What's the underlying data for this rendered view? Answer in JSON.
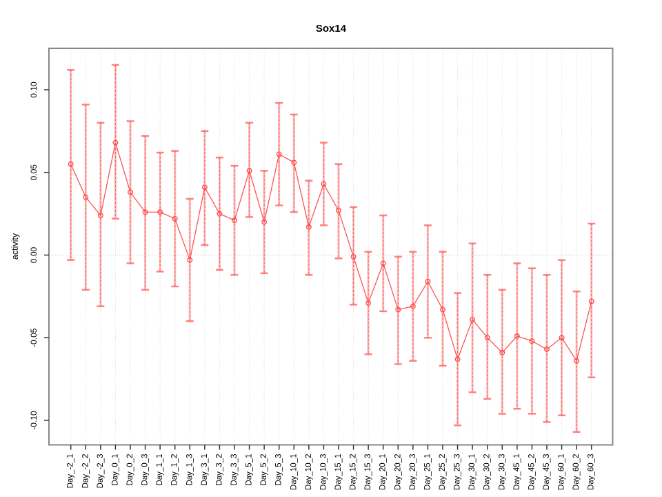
{
  "chart_data": {
    "type": "line",
    "title": "Sox14",
    "xlabel": "",
    "ylabel": "activity",
    "ylim": [
      -0.115,
      0.125
    ],
    "y_ticks": [
      0.1,
      0.05,
      0.0,
      -0.05,
      -0.1
    ],
    "y_tick_labels": [
      "0.10",
      "0.05",
      "0.00",
      "-0.05",
      "-0.10"
    ],
    "grid": "vertical dotted gridline per category, dotted horizontal line at y=0",
    "legend": "none",
    "marker": "open-circle",
    "categories": [
      "Day_-2_1",
      "Day_-2_2",
      "Day_-2_3",
      "Day_0_1",
      "Day_0_2",
      "Day_0_3",
      "Day_1_1",
      "Day_1_2",
      "Day_1_3",
      "Day_3_1",
      "Day_3_2",
      "Day_3_3",
      "Day_5_1",
      "Day_5_2",
      "Day_5_3",
      "Day_10_1",
      "Day_10_2",
      "Day_10_3",
      "Day_15_1",
      "Day_15_2",
      "Day_15_3",
      "Day_20_1",
      "Day_20_2",
      "Day_20_3",
      "Day_25_1",
      "Day_25_2",
      "Day_25_3",
      "Day_30_1",
      "Day_30_2",
      "Day_30_3",
      "Day_45_1",
      "Day_45_2",
      "Day_45_3",
      "Day_60_1",
      "Day_60_2",
      "Day_60_3"
    ],
    "series": [
      {
        "name": "activity",
        "values": [
          0.055,
          0.035,
          0.024,
          0.068,
          0.038,
          0.026,
          0.026,
          0.022,
          -0.003,
          0.041,
          0.025,
          0.021,
          0.051,
          0.02,
          0.061,
          0.056,
          0.017,
          0.043,
          0.027,
          -0.001,
          -0.029,
          -0.005,
          -0.033,
          -0.031,
          -0.016,
          -0.033,
          -0.063,
          -0.039,
          -0.05,
          -0.059,
          -0.049,
          -0.052,
          -0.057,
          -0.05,
          -0.064,
          -0.028
        ],
        "ci_upper": [
          0.112,
          0.091,
          0.08,
          0.115,
          0.081,
          0.072,
          0.062,
          0.063,
          0.034,
          0.075,
          0.059,
          0.054,
          0.08,
          0.051,
          0.092,
          0.085,
          0.045,
          0.068,
          0.055,
          0.029,
          0.002,
          0.024,
          -0.001,
          0.002,
          0.018,
          0.002,
          -0.023,
          0.007,
          -0.012,
          -0.021,
          -0.005,
          -0.008,
          -0.012,
          -0.003,
          -0.022,
          0.019
        ],
        "ci_lower": [
          -0.003,
          -0.021,
          -0.031,
          0.022,
          -0.005,
          -0.021,
          -0.01,
          -0.019,
          -0.04,
          0.006,
          -0.009,
          -0.012,
          0.023,
          -0.011,
          0.03,
          0.026,
          -0.012,
          0.018,
          -0.002,
          -0.03,
          -0.06,
          -0.034,
          -0.066,
          -0.064,
          -0.05,
          -0.067,
          -0.103,
          -0.083,
          -0.087,
          -0.096,
          -0.093,
          -0.096,
          -0.101,
          -0.097,
          -0.107,
          -0.074
        ]
      }
    ],
    "colors": {
      "series_line": "#ff5252",
      "marker_stroke": "#ff4747",
      "error_bar_light": "#ff6464",
      "error_bar_dash": "#f05050",
      "gridline": "#dcdcdc",
      "zero_line": "#c0c0c0",
      "frame": "#878787",
      "tick": "#333333",
      "label_text": "#000000"
    }
  }
}
